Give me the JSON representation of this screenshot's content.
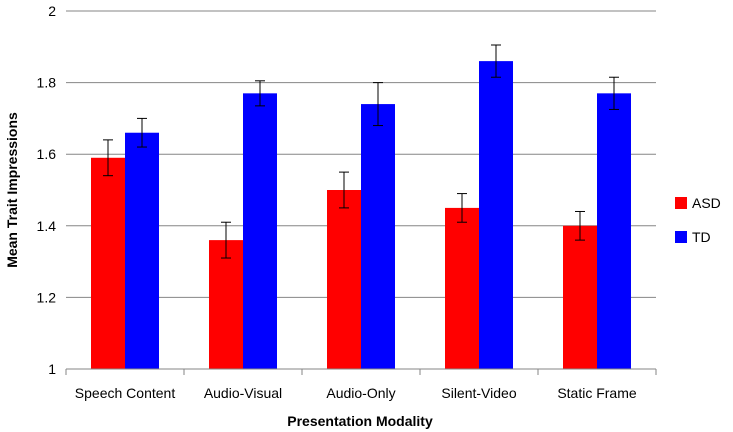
{
  "chart_data": {
    "type": "bar",
    "title": "",
    "xlabel": "Presentation Modality",
    "ylabel": "Mean Trait Impressions",
    "ylim": [
      1,
      2
    ],
    "yticks": [
      "1",
      "1.2",
      "1.4",
      "1.6",
      "1.8",
      "2"
    ],
    "grid": true,
    "legend": "right",
    "categories": [
      "Speech Content",
      "Audio-Visual",
      "Audio-Only",
      "Silent-Video",
      "Static Frame"
    ],
    "series": [
      {
        "name": "ASD",
        "color": "#ff0000",
        "values": [
          1.59,
          1.36,
          1.5,
          1.45,
          1.4
        ],
        "error": [
          0.05,
          0.05,
          0.05,
          0.04,
          0.04
        ]
      },
      {
        "name": "TD",
        "color": "#0000ff",
        "values": [
          1.66,
          1.77,
          1.74,
          1.86,
          1.77
        ],
        "error": [
          0.04,
          0.035,
          0.06,
          0.045,
          0.045
        ]
      }
    ]
  }
}
